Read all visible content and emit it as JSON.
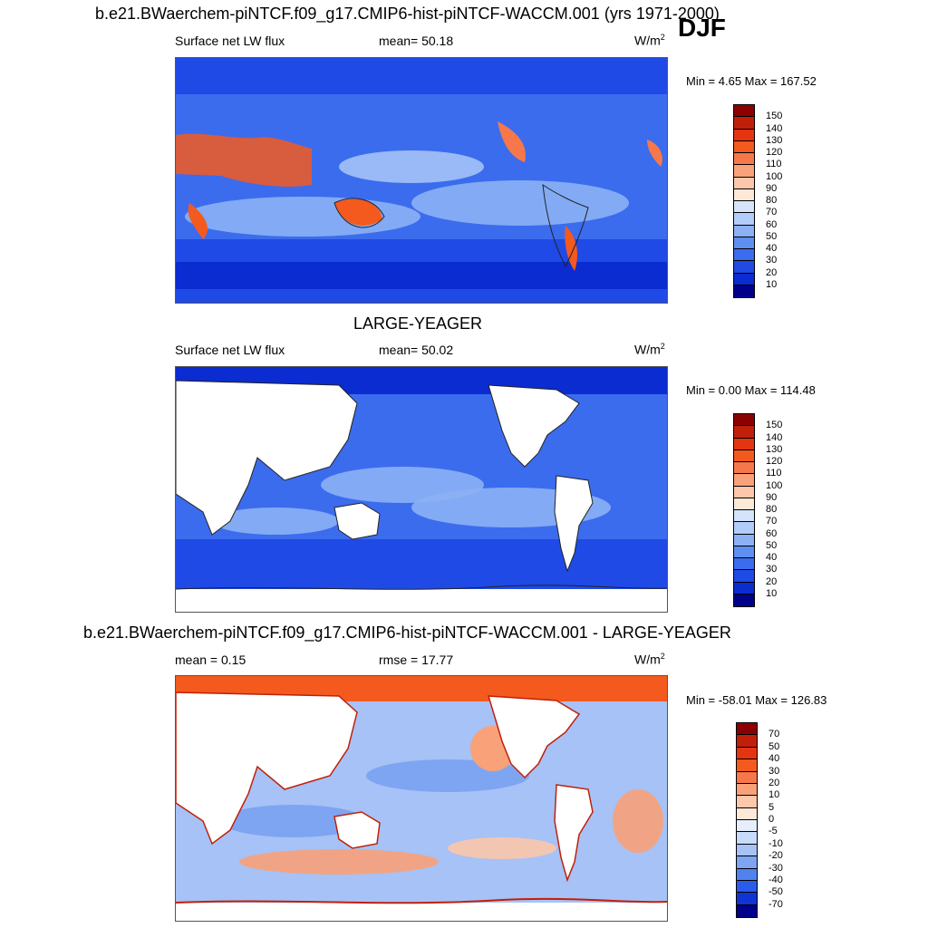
{
  "season": "DJF",
  "chart_data": [
    {
      "type": "heatmap",
      "title": "b.e21.BWaerchem-piNTCF.f09_g17.CMIP6-hist-piNTCF-WACCM.001 (yrs 1971-2000)",
      "left_label": "Surface net LW flux",
      "stat_label": "mean=  50.18",
      "units_base": "W/m",
      "units_exp": "2",
      "minmax": "Min =   4.65 Max = 167.52",
      "colorbar_labels": [
        "150",
        "140",
        "130",
        "120",
        "110",
        "100",
        "90",
        "80",
        "70",
        "60",
        "50",
        "40",
        "30",
        "20",
        "10"
      ],
      "colors": [
        "#8b0000",
        "#c0200a",
        "#e53510",
        "#f4591e",
        "#f6784a",
        "#f9a179",
        "#fcc7aa",
        "#fde9d6",
        "#d5e4fb",
        "#b2cdf9",
        "#8cb1f4",
        "#5f8ff0",
        "#3b6cee",
        "#1f4ae5",
        "#0a2cd0",
        "#00008a"
      ]
    },
    {
      "type": "heatmap",
      "title": "LARGE-YEAGER",
      "left_label": "Surface net LW flux",
      "stat_label": "mean=  50.02",
      "units_base": "W/m",
      "units_exp": "2",
      "minmax": "Min =   0.00 Max = 114.48",
      "colorbar_labels": [
        "150",
        "140",
        "130",
        "120",
        "110",
        "100",
        "90",
        "80",
        "70",
        "60",
        "50",
        "40",
        "30",
        "20",
        "10"
      ],
      "colors": [
        "#8b0000",
        "#c0200a",
        "#e53510",
        "#f4591e",
        "#f6784a",
        "#f9a179",
        "#fcc7aa",
        "#fde9d6",
        "#d5e4fb",
        "#b2cdf9",
        "#8cb1f4",
        "#5f8ff0",
        "#3b6cee",
        "#1f4ae5",
        "#0a2cd0",
        "#00008a"
      ]
    },
    {
      "type": "heatmap",
      "title": "b.e21.BWaerchem-piNTCF.f09_g17.CMIP6-hist-piNTCF-WACCM.001 - LARGE-YEAGER",
      "left_label": "mean =   0.15",
      "stat_label": "rmse =  17.77",
      "units_base": "W/m",
      "units_exp": "2",
      "minmax": "Min = -58.01 Max = 126.83",
      "colorbar_labels": [
        "70",
        "50",
        "40",
        "30",
        "20",
        "10",
        "5",
        "0",
        "-5",
        "-10",
        "-20",
        "-30",
        "-40",
        "-50",
        "-70"
      ],
      "colors": [
        "#8b0000",
        "#c0200a",
        "#e53510",
        "#f4591e",
        "#f6784a",
        "#f9a179",
        "#fcc7aa",
        "#fde9d6",
        "#e6eefc",
        "#c9dbfa",
        "#a6c2f6",
        "#7ea5f2",
        "#5183ef",
        "#2b5be9",
        "#0f35d5",
        "#00008a"
      ]
    }
  ]
}
